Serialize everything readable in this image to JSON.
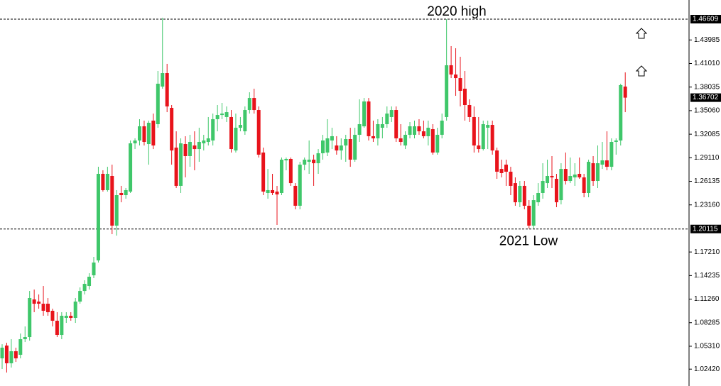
{
  "chart_data": {
    "type": "candlestick",
    "up_color": "#3fc76a",
    "down_color": "#e8131b",
    "ylim": [
      1.0029,
      1.4903
    ],
    "yticks": [
      1.43985,
      {
        "value": 1.4101,
        "label": "1.41010"
      },
      1.38035,
      {
        "value": 1.3506,
        "label": "1.35060"
      },
      1.32085,
      {
        "value": 1.2911,
        "label": "1.29110"
      },
      1.26135,
      {
        "value": 1.2316,
        "label": "1.23160"
      },
      {
        "value": 1.1721,
        "label": "1.17210"
      },
      1.14235,
      {
        "value": 1.1126,
        "label": "1.11260"
      },
      1.08285,
      {
        "value": 1.0531,
        "label": "1.05310"
      },
      {
        "value": 1.0242,
        "label": "1.02420"
      }
    ],
    "levels": [
      {
        "label": "2020 high",
        "value": 1.46609
      },
      {
        "label": "2021 Low",
        "value": 1.20115
      }
    ],
    "last_price": 1.36702,
    "open": [
      1.0378,
      1.054,
      1.0316,
      1.0468,
      1.0423,
      1.062,
      1.0647,
      1.1122,
      1.1095,
      1.1068,
      1.1068,
      1.0979,
      1.0853,
      1.0674,
      1.0889,
      1.0916,
      1.0889,
      1.1095,
      1.1229,
      1.1292,
      1.1427,
      1.1615,
      1.2708,
      1.2502,
      1.2681,
      1.2054,
      1.2466,
      1.2439,
      1.2484,
      1.3093,
      1.3129,
      1.3308,
      1.3084,
      1.338,
      1.3335,
      1.381,
      1.398,
      1.3541,
      1.3039,
      1.2556,
      1.3084,
      1.2932,
      1.3066,
      1.3021,
      1.3093,
      1.3111,
      1.3129,
      1.3398,
      1.3451,
      1.3425,
      1.3425,
      1.3003,
      1.329,
      1.3245,
      1.3514,
      1.3666,
      1.3514,
      1.2977,
      1.2466,
      1.2502,
      1.2484,
      1.2466,
      1.2878,
      1.2896,
      1.2556,
      1.2305,
      1.2824,
      1.286,
      1.2887,
      1.2842,
      1.2968,
      1.2977,
      1.3129,
      1.3066,
      1.3003,
      1.3066,
      1.3147,
      1.2887,
      1.3201,
      1.3308,
      1.3622,
      1.3183,
      1.3156,
      1.329,
      1.3335,
      1.3425,
      1.3514,
      1.3156,
      1.3066,
      1.3201,
      1.3201,
      1.3308,
      1.3245,
      1.3183,
      1.3272,
      1.2977,
      1.3201,
      1.3425,
      1.4079,
      1.3962,
      1.3917,
      1.3783,
      1.3577,
      1.3425,
      1.3066,
      1.3021,
      1.329,
      1.3326,
      1.3003,
      1.277,
      1.2824,
      1.2735,
      1.2591,
      1.2349,
      1.2556,
      1.2305,
      1.2054,
      1.2349,
      1.2466,
      1.2591,
      1.2681,
      1.2645,
      1.2376,
      1.277,
      1.2618,
      1.2663,
      1.2708,
      1.2663,
      1.2466,
      1.2842,
      1.2618,
      1.2824,
      1.2878,
      1.2797,
      1.3111,
      1.3129,
      1.381
    ],
    "high": [
      1.0557,
      1.0575,
      1.062,
      1.0513,
      1.0692,
      1.0781,
      1.1229,
      1.1247,
      1.1185,
      1.1292,
      1.114,
      1.1005,
      1.0961,
      1.0961,
      1.0961,
      1.0961,
      1.114,
      1.1274,
      1.1364,
      1.1453,
      1.166,
      1.2797,
      1.2753,
      1.2797,
      1.2824,
      1.2502,
      1.2556,
      1.2529,
      1.3129,
      1.3156,
      1.3398,
      1.338,
      1.338,
      1.3469,
      1.4007,
      1.4679,
      1.4097,
      1.3577,
      1.3245,
      1.3156,
      1.3183,
      1.3201,
      1.3245,
      1.329,
      1.3201,
      1.3425,
      1.3469,
      1.3577,
      1.3604,
      1.3559,
      1.3514,
      1.3469,
      1.3425,
      1.3559,
      1.3738,
      1.3783,
      1.3559,
      1.3039,
      1.277,
      1.2708,
      1.2556,
      1.2914,
      1.2914,
      1.2914,
      1.2591,
      1.286,
      1.2914,
      1.3129,
      1.295,
      1.3021,
      1.3201,
      1.3398,
      1.329,
      1.3183,
      1.3156,
      1.3201,
      1.329,
      1.329,
      1.3649,
      1.3666,
      1.3666,
      1.338,
      1.3398,
      1.3425,
      1.3559,
      1.3559,
      1.3559,
      1.3335,
      1.3245,
      1.3362,
      1.338,
      1.3398,
      1.338,
      1.338,
      1.3335,
      1.329,
      1.3469,
      1.4661,
      1.4321,
      1.4294,
      1.4186,
      1.4007,
      1.3649,
      1.3559,
      1.3425,
      1.338,
      1.338,
      1.338,
      1.3039,
      1.2887,
      1.2887,
      1.2797,
      1.2663,
      1.2618,
      1.2618,
      1.2376,
      1.2439,
      1.2591,
      1.2842,
      1.2887,
      1.2932,
      1.2708,
      1.2842,
      1.2977,
      1.2914,
      1.2842,
      1.2914,
      1.2708,
      1.2887,
      1.2932,
      1.3066,
      1.3111,
      1.3245,
      1.3156,
      1.3156,
      1.3846,
      1.3989
    ],
    "low": [
      1.0244,
      1.0199,
      1.0262,
      1.0333,
      1.0378,
      1.0584,
      1.0602,
      1.0961,
      1.1005,
      1.0916,
      1.0916,
      1.0781,
      1.0647,
      1.062,
      1.0826,
      1.0853,
      1.0826,
      1.1068,
      1.1185,
      1.1247,
      1.1391,
      1.1588,
      1.2484,
      1.2484,
      1.1946,
      1.1928,
      1.2349,
      1.2394,
      1.2466,
      1.3021,
      1.3066,
      1.3066,
      1.2824,
      1.3021,
      1.329,
      1.3783,
      1.3487,
      1.2824,
      1.2529,
      1.2466,
      1.2663,
      1.2797,
      1.2753,
      1.286,
      1.3003,
      1.3066,
      1.3066,
      1.3245,
      1.3398,
      1.3362,
      1.2977,
      1.2977,
      1.3245,
      1.3201,
      1.3469,
      1.3469,
      1.2914,
      1.2439,
      1.2394,
      1.2439,
      1.2063,
      1.2439,
      1.2753,
      1.2556,
      1.226,
      1.226,
      1.2753,
      1.2708,
      1.2556,
      1.2708,
      1.2887,
      1.2932,
      1.3021,
      1.295,
      1.2887,
      1.286,
      1.2797,
      1.286,
      1.3111,
      1.329,
      1.3129,
      1.3111,
      1.3066,
      1.3156,
      1.329,
      1.3362,
      1.3111,
      1.3066,
      1.3021,
      1.3156,
      1.3156,
      1.3201,
      1.3156,
      1.3066,
      1.295,
      1.295,
      1.3156,
      1.338,
      1.3917,
      1.3693,
      1.3559,
      1.338,
      1.3362,
      1.2977,
      1.2977,
      1.3003,
      1.3021,
      1.295,
      1.2645,
      1.2663,
      1.2556,
      1.2439,
      1.2305,
      1.2287,
      1.226,
      1.2018,
      1.2018,
      1.2305,
      1.2394,
      1.2529,
      1.2529,
      1.2287,
      1.2322,
      1.2573,
      1.2591,
      1.2556,
      1.2645,
      1.2412,
      1.2412,
      1.2556,
      1.2529,
      1.277,
      1.2753,
      1.2753,
      1.295,
      1.3066,
      1.3487
    ],
    "close": [
      1.0513,
      1.0316,
      1.0468,
      1.0378,
      1.062,
      1.0647,
      1.114,
      1.1068,
      1.1068,
      1.0979,
      1.0961,
      1.0853,
      1.0674,
      1.0916,
      1.0916,
      1.0889,
      1.1095,
      1.1229,
      1.1319,
      1.1409,
      1.1588,
      1.2708,
      1.2502,
      1.2708,
      1.2054,
      1.2439,
      1.2439,
      1.2502,
      1.3093,
      1.3129,
      1.3308,
      1.3111,
      1.3353,
      1.3066,
      1.3846,
      1.398,
      1.3559,
      1.3003,
      1.2556,
      1.3093,
      1.2932,
      1.3111,
      1.3021,
      1.3111,
      1.3129,
      1.3156,
      1.3398,
      1.3451,
      1.3469,
      1.3487,
      1.3021,
      1.329,
      1.3326,
      1.3514,
      1.3666,
      1.3514,
      1.295,
      1.2484,
      1.2502,
      1.2466,
      1.2448,
      1.2887,
      1.2896,
      1.2591,
      1.2305,
      1.2824,
      1.2887,
      1.2887,
      1.2842,
      1.2968,
      1.3129,
      1.3156,
      1.3183,
      1.3003,
      1.3066,
      1.3147,
      1.2887,
      1.3201,
      1.3335,
      1.3622,
      1.3183,
      1.3156,
      1.3335,
      1.3335,
      1.3469,
      1.3514,
      1.3156,
      1.3111,
      1.3201,
      1.3308,
      1.3308,
      1.3245,
      1.3183,
      1.329,
      1.2977,
      1.3201,
      1.338,
      1.4079,
      1.3962,
      1.3917,
      1.3756,
      1.3577,
      1.3425,
      1.3066,
      1.3021,
      1.3335,
      1.3326,
      1.3003,
      1.2735,
      1.2717,
      1.2735,
      1.2556,
      1.2349,
      1.2556,
      1.2305,
      1.2054,
      1.2376,
      1.2466,
      1.2618,
      1.2681,
      1.2663,
      1.2349,
      1.277,
      1.2618,
      1.2681,
      1.2699,
      1.2663,
      1.2466,
      1.286,
      1.2618,
      1.2842,
      1.2878,
      1.2797,
      1.3111,
      1.3129,
      1.3828,
      1.367
    ]
  }
}
